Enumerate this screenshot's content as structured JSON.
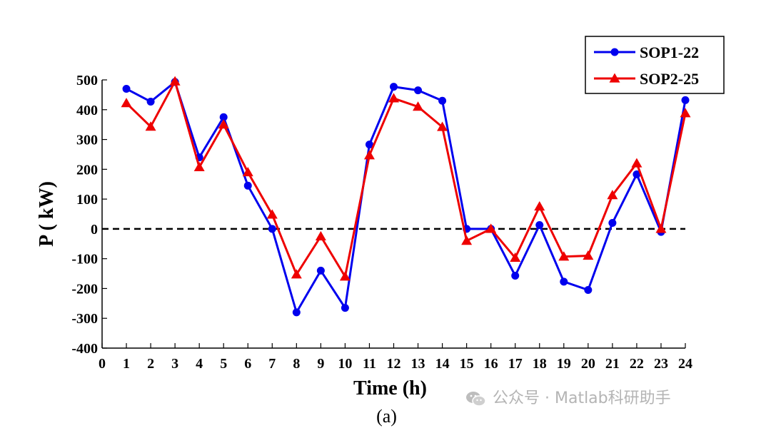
{
  "chart_data": {
    "type": "line",
    "title": "",
    "xlabel": "Time (h)",
    "ylabel": "P ( kW)",
    "caption": "(a)",
    "x": [
      1,
      2,
      3,
      4,
      5,
      6,
      7,
      8,
      9,
      10,
      11,
      12,
      13,
      14,
      15,
      16,
      17,
      18,
      19,
      20,
      21,
      22,
      23,
      24
    ],
    "xlim": [
      0,
      24
    ],
    "ylim": [
      -400,
      500
    ],
    "xticks": [
      0,
      1,
      2,
      3,
      4,
      5,
      6,
      7,
      8,
      9,
      10,
      11,
      12,
      13,
      14,
      15,
      16,
      17,
      18,
      19,
      20,
      21,
      22,
      23,
      24
    ],
    "yticks": [
      500,
      400,
      300,
      200,
      100,
      0,
      -100,
      -200,
      -300,
      -400
    ],
    "ytick_labels": [
      "500",
      "400",
      "300",
      "200",
      "100",
      "0",
      "-100",
      "-200",
      "-300",
      "-400"
    ],
    "reference_line": {
      "y": 0,
      "style": "dashed",
      "color": "#000000"
    },
    "legend_position": "top-right",
    "series": [
      {
        "name": "SOP1-22",
        "color": "#0000ee",
        "marker": "circle",
        "values": [
          470,
          427,
          493,
          240,
          375,
          145,
          0,
          -280,
          -140,
          -265,
          283,
          477,
          465,
          430,
          0,
          0,
          -157,
          13,
          -177,
          -205,
          20,
          183,
          -10,
          432
        ]
      },
      {
        "name": "SOP2-25",
        "color": "#ee0000",
        "marker": "triangle",
        "values": [
          422,
          343,
          495,
          207,
          350,
          190,
          48,
          -153,
          -25,
          -160,
          247,
          438,
          410,
          342,
          -40,
          0,
          -97,
          75,
          -93,
          -90,
          113,
          220,
          0,
          388
        ]
      }
    ]
  },
  "watermark": {
    "icon": "wechat-icon",
    "text": "公众号 · Matlab科研助手"
  }
}
